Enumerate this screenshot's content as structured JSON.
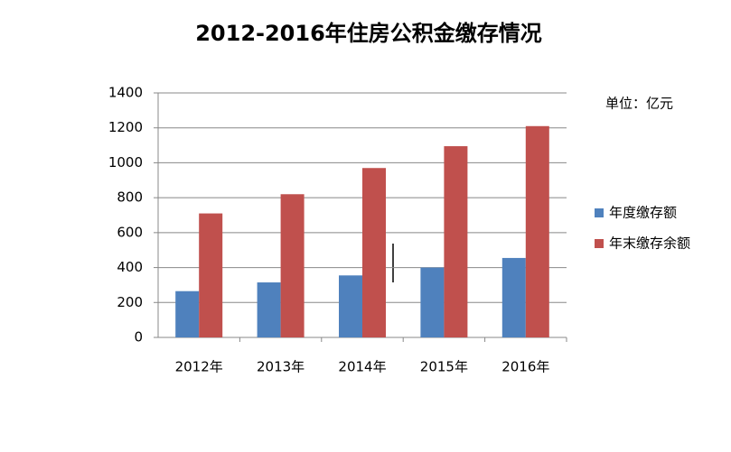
{
  "chart_data": {
    "type": "bar",
    "title": "2012-2016年住房公积金缴存情况",
    "annotation": "单位：亿元",
    "categories": [
      "2012年",
      "2013年",
      "2014年",
      "2015年",
      "2016年"
    ],
    "series": [
      {
        "name": "年度缴存额",
        "color": "#4f81bd",
        "values": [
          265,
          315,
          355,
          400,
          455
        ]
      },
      {
        "name": "年末缴存余额",
        "color": "#c0504d",
        "values": [
          710,
          820,
          970,
          1095,
          1210
        ]
      }
    ],
    "ylim": [
      0,
      1400
    ],
    "yticks": [
      0,
      200,
      400,
      600,
      800,
      1000,
      1200,
      1400
    ],
    "grid": true,
    "legend": "right"
  }
}
